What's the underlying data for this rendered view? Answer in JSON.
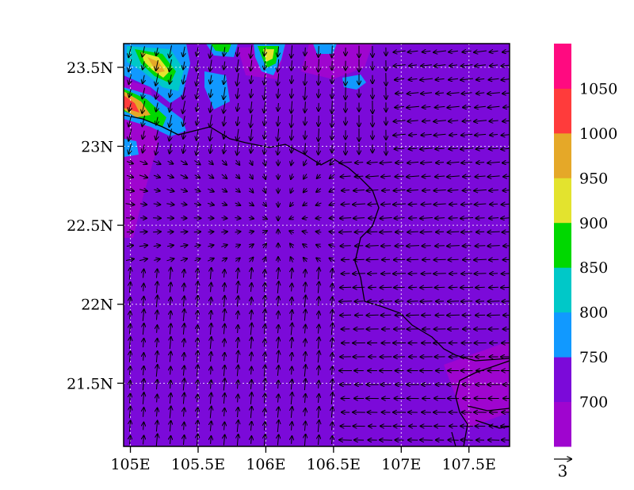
{
  "chart_data": {
    "type": "heatmap",
    "title": "",
    "xlabel": "",
    "ylabel": "",
    "x_range": [
      104.95,
      107.8
    ],
    "y_range": [
      21.1,
      23.65
    ],
    "x_ticks": [
      {
        "value": 105.0,
        "label": "105E"
      },
      {
        "value": 105.5,
        "label": "105.5E"
      },
      {
        "value": 106.0,
        "label": "106E"
      },
      {
        "value": 106.5,
        "label": "106.5E"
      },
      {
        "value": 107.0,
        "label": "107E"
      },
      {
        "value": 107.5,
        "label": "107.5E"
      }
    ],
    "y_ticks": [
      {
        "value": 21.5,
        "label": "21.5N"
      },
      {
        "value": 22.0,
        "label": "22N"
      },
      {
        "value": 22.5,
        "label": "22.5N"
      },
      {
        "value": 23.0,
        "label": "23N"
      },
      {
        "value": 23.5,
        "label": "23.5N"
      }
    ],
    "grid": true,
    "colorbar": {
      "levels": [
        "700",
        "750",
        "800",
        "850",
        "900",
        "950",
        "1000",
        "1050"
      ],
      "colors": [
        "#9f05cf",
        "#7b0ad9",
        "#1199ff",
        "#00c8c8",
        "#00d800",
        "#e3e32e",
        "#e5a828",
        "#ff3b3b",
        "#ff0a80"
      ]
    },
    "vector_reference": {
      "label": "3"
    },
    "field_description_values": {
      "background_level": 700,
      "high_cells_lonlat": [
        {
          "lon": 105.2,
          "lat": 23.45,
          "value": 950
        },
        {
          "lon": 105.05,
          "lat": 23.25,
          "value": 1000
        },
        {
          "lon": 105.55,
          "lat": 23.55,
          "value": 800
        },
        {
          "lon": 105.9,
          "lat": 23.55,
          "value": 850
        },
        {
          "lon": 105.6,
          "lat": 23.3,
          "value": 750
        },
        {
          "lon": 106.65,
          "lat": 23.35,
          "value": 750
        }
      ]
    }
  }
}
